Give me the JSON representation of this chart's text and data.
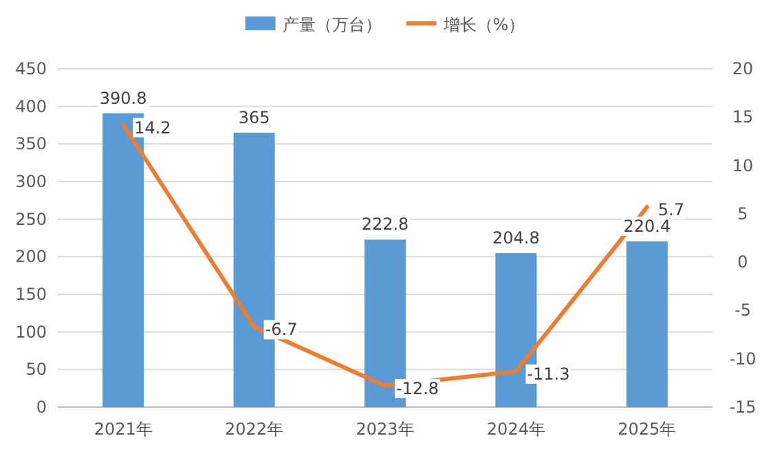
{
  "chart_data": {
    "type": "bar",
    "categories": [
      "2021年",
      "2022年",
      "2023年",
      "2024年",
      "2025年"
    ],
    "series": [
      {
        "name": "产量（万台）",
        "color": "#5b9bd5",
        "values": [
          390.8,
          365,
          222.8,
          204.8,
          220.4
        ]
      },
      {
        "name": "增长（%）",
        "type": "line",
        "axis": "y2",
        "color": "#ed7d31",
        "values": [
          14.2,
          -6.7,
          -12.8,
          -11.3,
          5.7
        ]
      }
    ],
    "ylim": [
      0,
      450
    ],
    "yticks": [
      0,
      50,
      100,
      150,
      200,
      250,
      300,
      350,
      400,
      450
    ],
    "y2lim": [
      -15,
      20
    ],
    "y2ticks": [
      -15,
      -10,
      -5,
      0,
      5,
      10,
      15,
      20
    ],
    "grid": "y",
    "legend": "top",
    "data_labels": true,
    "marker": "none",
    "line_style": "solid"
  }
}
